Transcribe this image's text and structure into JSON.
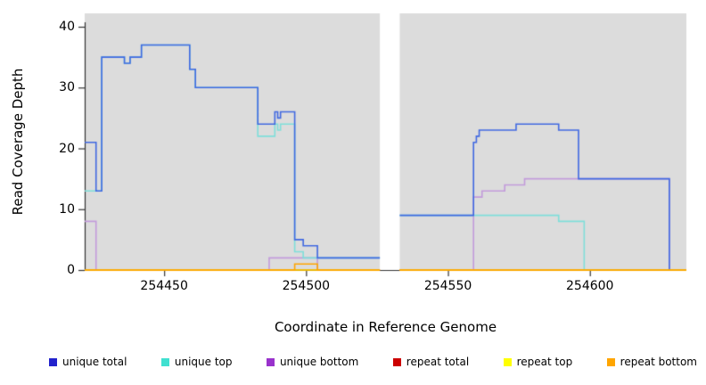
{
  "chart_data": {
    "type": "line",
    "step": true,
    "title": "",
    "xlabel": "Coordinate in Reference Genome",
    "ylabel": "Read Coverage Depth",
    "xlim": [
      254422,
      254634
    ],
    "ylim": [
      0,
      42.2
    ],
    "x_ticks": [
      254450,
      254500,
      254550,
      254600
    ],
    "y_ticks": [
      0,
      10,
      20,
      30,
      40
    ],
    "plot_background": "#DCDCDC",
    "gap_region": [
      254526,
      254533
    ],
    "axis_color": "#333333",
    "grid": false,
    "legend_position": "bottom",
    "series": [
      {
        "name": "unique bottom",
        "color": "#C39BDB",
        "segments": [
          {
            "end": 254526,
            "points": [
              [
                254422,
                8
              ],
              [
                254426,
                0
              ],
              [
                254487,
                2
              ],
              [
                254504,
                0
              ]
            ]
          },
          {
            "end": 254634,
            "points": [
              [
                254533,
                0
              ],
              [
                254559,
                12
              ],
              [
                254562,
                13
              ],
              [
                254570,
                14
              ],
              [
                254577,
                15
              ],
              [
                254628,
                0
              ]
            ]
          }
        ]
      },
      {
        "name": "unique top",
        "color": "#7FDFDA",
        "segments": [
          {
            "end": 254526,
            "points": [
              [
                254422,
                13
              ],
              [
                254428,
                35
              ],
              [
                254436,
                34
              ],
              [
                254438,
                35
              ],
              [
                254442,
                37
              ],
              [
                254459,
                33
              ],
              [
                254461,
                30
              ],
              [
                254483,
                22
              ],
              [
                254489,
                24
              ],
              [
                254490,
                23
              ],
              [
                254491,
                24
              ],
              [
                254496,
                3
              ],
              [
                254499,
                2
              ]
            ]
          },
          {
            "end": 254634,
            "points": [
              [
                254533,
                9
              ],
              [
                254589,
                8
              ],
              [
                254598,
                0
              ]
            ]
          }
        ]
      },
      {
        "name": "unique total",
        "color": "#4169E1",
        "segments": [
          {
            "end": 254526,
            "points": [
              [
                254422,
                21
              ],
              [
                254426,
                13
              ],
              [
                254428,
                35
              ],
              [
                254436,
                34
              ],
              [
                254438,
                35
              ],
              [
                254442,
                37
              ],
              [
                254459,
                33
              ],
              [
                254461,
                30
              ],
              [
                254483,
                24
              ],
              [
                254489,
                26
              ],
              [
                254490,
                25
              ],
              [
                254491,
                26
              ],
              [
                254496,
                5
              ],
              [
                254499,
                4
              ],
              [
                254504,
                2
              ]
            ]
          },
          {
            "end": 254634,
            "points": [
              [
                254533,
                9
              ],
              [
                254559,
                21
              ],
              [
                254560,
                22
              ],
              [
                254561,
                23
              ],
              [
                254574,
                24
              ],
              [
                254589,
                23
              ],
              [
                254596,
                15
              ],
              [
                254628,
                0
              ]
            ]
          }
        ]
      },
      {
        "name": "repeat total",
        "color": "#CC0000",
        "segments": [
          {
            "end": 254526,
            "points": [
              [
                254422,
                0
              ]
            ]
          },
          {
            "end": 254634,
            "points": [
              [
                254533,
                0
              ]
            ]
          }
        ]
      },
      {
        "name": "repeat top",
        "color": "#FFEE00",
        "segments": [
          {
            "end": 254526,
            "points": [
              [
                254422,
                0
              ]
            ]
          },
          {
            "end": 254634,
            "points": [
              [
                254533,
                0
              ]
            ]
          }
        ]
      },
      {
        "name": "repeat bottom",
        "color": "#FFA500",
        "segments": [
          {
            "end": 254526,
            "points": [
              [
                254422,
                0
              ],
              [
                254496,
                1
              ],
              [
                254504,
                0
              ]
            ]
          },
          {
            "end": 254634,
            "points": [
              [
                254533,
                0
              ]
            ]
          }
        ]
      }
    ],
    "legend": [
      {
        "label": "unique total",
        "color": "#2222CC"
      },
      {
        "label": "unique top",
        "color": "#40E0D0"
      },
      {
        "label": "unique bottom",
        "color": "#9932CC"
      },
      {
        "label": "repeat total",
        "color": "#CC0000"
      },
      {
        "label": "repeat top",
        "color": "#FFFF00"
      },
      {
        "label": "repeat bottom",
        "color": "#FFA500"
      }
    ]
  }
}
